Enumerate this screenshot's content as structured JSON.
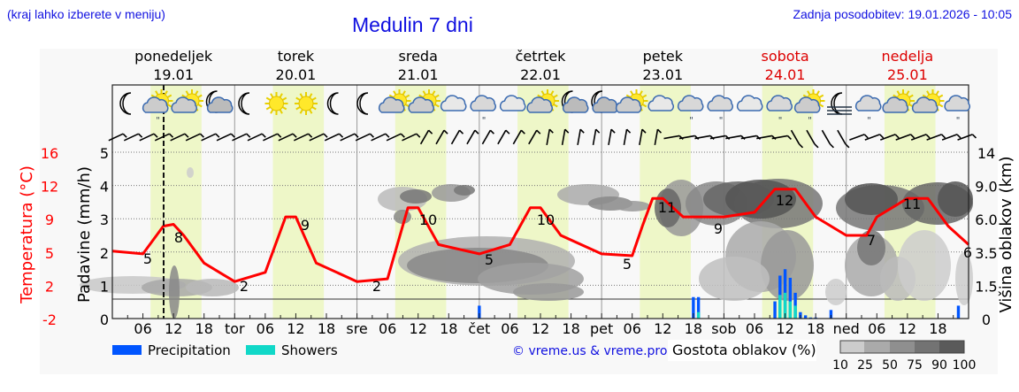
{
  "header": {
    "note": "(kraj lahko izberete v meniju)",
    "title": "Medulin 7 dni",
    "updated": "Zadnja posodobitev: 19.01.2026 - 10:05"
  },
  "days": [
    {
      "name": "ponedeljek",
      "date": "19.01",
      "weekend": false
    },
    {
      "name": "torek",
      "date": "20.01",
      "weekend": false
    },
    {
      "name": "sreda",
      "date": "21.01",
      "weekend": false
    },
    {
      "name": "četrtek",
      "date": "22.01",
      "weekend": false
    },
    {
      "name": "petek",
      "date": "23.01",
      "weekend": false
    },
    {
      "name": "sobota",
      "date": "24.01",
      "weekend": true
    },
    {
      "name": "nedelja",
      "date": "25.01",
      "weekend": true
    }
  ],
  "axes": {
    "left_temp_label": "Temperatura (°C)",
    "left_temp_ticks": [
      "16",
      "12",
      "9",
      "5",
      "2",
      "-2"
    ],
    "left_precip_label": "Padavine (mm/h)",
    "left_precip_ticks": [
      "5",
      "4",
      "3",
      "2",
      "1",
      "0"
    ],
    "right_label": "Višina oblakov (km)",
    "right_ticks": [
      "14",
      "9.0",
      "6.0",
      "3.5",
      "1.5",
      "0"
    ],
    "x_ticks": [
      "06",
      "12",
      "18",
      "tor",
      "06",
      "12",
      "18",
      "sre",
      "06",
      "12",
      "18",
      "čet",
      "06",
      "12",
      "18",
      "pet",
      "06",
      "12",
      "18",
      "sob",
      "06",
      "12",
      "18",
      "ned",
      "06",
      "12",
      "18"
    ]
  },
  "legend": {
    "precipitation": "Precipitation",
    "showers": "Showers",
    "credit": "© vreme.us & vreme.pro",
    "cloud_density_label": "Gostota oblakov (%)",
    "cloud_density_ticks": [
      "10",
      "25",
      "50",
      "75",
      "90",
      "100"
    ]
  },
  "colors": {
    "temperature": "#ff0000",
    "precipitation": "#0055ff",
    "showers": "#11d8c8",
    "daylight": "#eef7c8",
    "title": "#1010e0",
    "weekend": "#dd0000"
  },
  "icons": [
    "moon",
    "sun-cloud-rain",
    "sun-cloud",
    "moon-cloud",
    "moon",
    "sun",
    "sun",
    "moon",
    "moon",
    "sun-cloud",
    "sun-cloud",
    "cloud",
    "cloud-drizzle",
    "cloud",
    "sun-cloud",
    "moon-cloud",
    "moon-cloud",
    "sun-cloud",
    "cloud",
    "cloud-drizzle",
    "cloud-drizzle",
    "cloud",
    "cloud-drizzle",
    "sun-cloud-rain",
    "moon-fog",
    "cloud-drizzle",
    "sun-cloud",
    "sun-cloud",
    "cloud-drizzle"
  ],
  "chart_data": {
    "type": "line",
    "title": "Medulin 7 dni",
    "xlabel": "",
    "ylabel": "Temperatura (°C) / Padavine (mm/h)",
    "y2label": "Višina oblakov (km)",
    "ylim_precip": [
      0,
      5
    ],
    "ylim_temp": [
      -2,
      16
    ],
    "grid": true,
    "current_time": "19.01 10:05",
    "series": [
      {
        "name": "Temperatura",
        "unit": "°C",
        "color": "#ff0000",
        "x_hours": [
          0,
          6,
          10,
          12,
          14,
          18,
          24,
          30,
          34,
          36,
          40,
          48,
          54,
          58,
          60,
          64,
          72,
          78,
          82,
          84,
          88,
          96,
          102,
          104,
          106,
          108,
          112,
          120,
          126,
          130,
          134,
          138,
          144,
          148,
          150,
          156,
          160,
          164,
          168
        ],
        "values": [
          5.3,
          5,
          8,
          8.2,
          7,
          4,
          2,
          3,
          9,
          9,
          4,
          2,
          2.3,
          10,
          10,
          6,
          5,
          6,
          10,
          10,
          7,
          5,
          4.8,
          8,
          11,
          11,
          9,
          9,
          9.5,
          12,
          12,
          9,
          7,
          7,
          9,
          11,
          11,
          8,
          6
        ]
      },
      {
        "name": "Precipitation",
        "unit": "mm/h",
        "color": "#0055ff",
        "x_hours": [
          72,
          114,
          115,
          130,
          131,
          132,
          133,
          134,
          135,
          136,
          137,
          138,
          141,
          166
        ],
        "values": [
          0.6,
          1,
          1,
          0.8,
          2,
          2.3,
          1.9,
          1.2,
          0.3,
          0.15,
          0.05,
          0.05,
          0.4,
          0.6
        ]
      },
      {
        "name": "Showers",
        "unit": "mm/h",
        "color": "#11d8c8",
        "x_hours": [
          115,
          131,
          132,
          133,
          134
        ],
        "values": [
          0.3,
          1.1,
          1.2,
          0.8,
          0.6
        ]
      }
    ],
    "temperature_labels": [
      {
        "day": "19.01",
        "min": 5,
        "max": 8
      },
      {
        "day": "20.01",
        "min": 2,
        "max": 9
      },
      {
        "day": "21.01",
        "min": 2,
        "max": 10
      },
      {
        "day": "22.01",
        "min": 5,
        "max": 10
      },
      {
        "day": "23.01",
        "min": 5,
        "max": 11
      },
      {
        "day": "24.01",
        "min": 9,
        "max": 12
      },
      {
        "day": "25.01",
        "min": 7,
        "max": 11
      },
      {
        "day": "end",
        "value": 6
      }
    ],
    "cloud_density_scale": [
      10,
      25,
      50,
      75,
      90,
      100
    ],
    "legend_position": "bottom"
  }
}
